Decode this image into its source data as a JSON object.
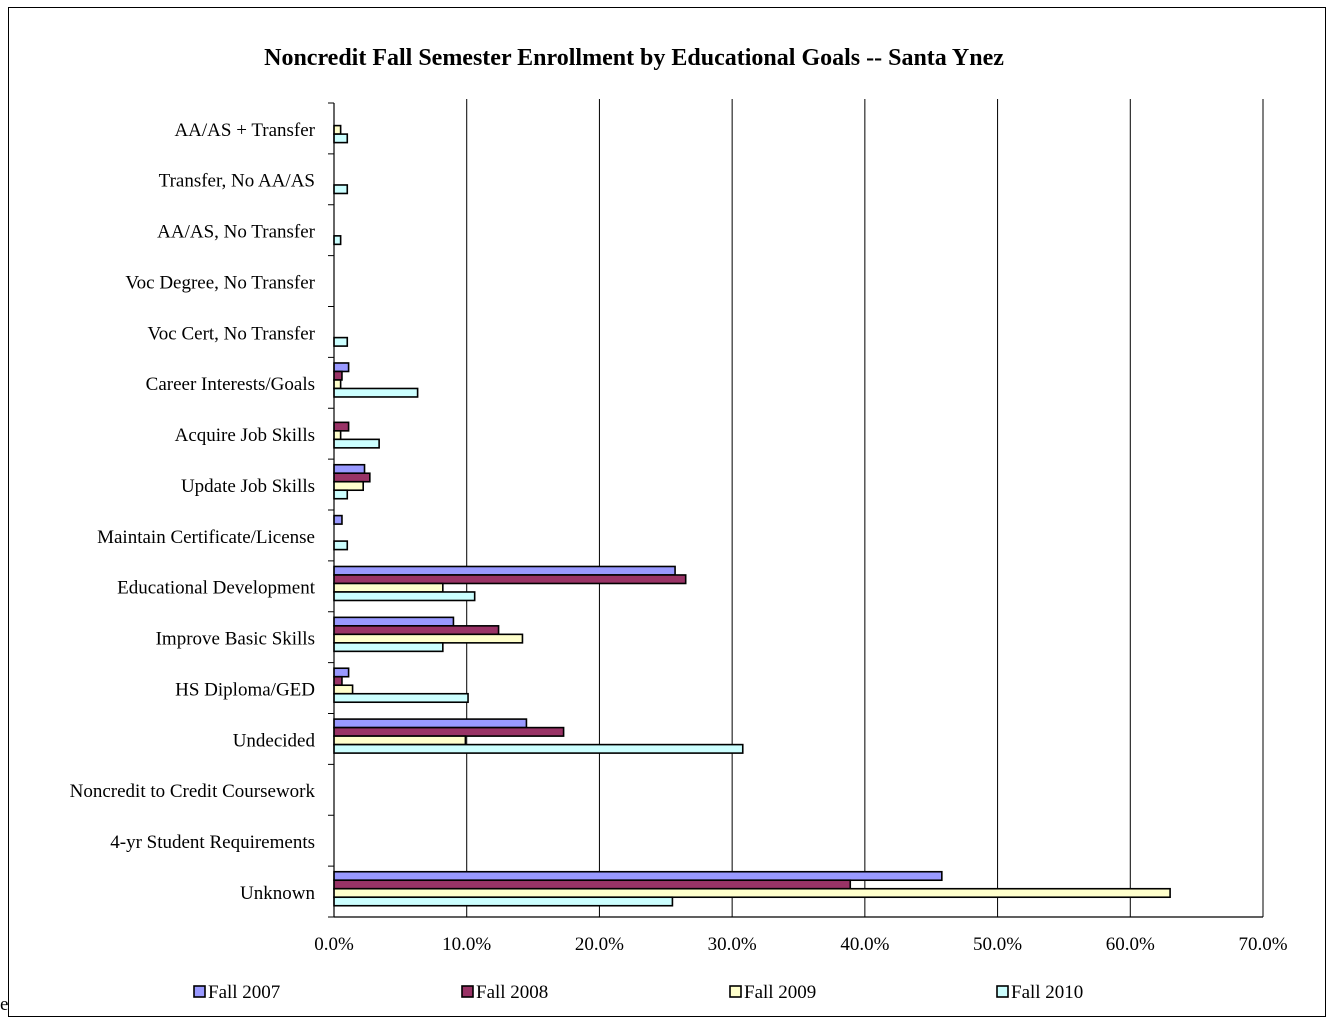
{
  "chart_data": {
    "type": "bar",
    "orientation": "horizontal",
    "title": "Noncredit Fall Semester Enrollment by Educational Goals -- Santa Ynez",
    "categories": [
      "AA/AS + Transfer",
      "Transfer, No AA/AS",
      "AA/AS, No Transfer",
      "Voc Degree, No Transfer",
      "Voc Cert, No Transfer",
      "Career Interests/Goals",
      "Acquire Job Skills",
      "Update Job Skills",
      "Maintain Certificate/License",
      "Educational Development",
      "Improve Basic Skills",
      "HS Diploma/GED",
      "Undecided",
      "Noncredit to Credit Coursework",
      "4-yr Student Requirements",
      "Unknown"
    ],
    "series": [
      {
        "name": "Fall 2007",
        "color": "#9999FF",
        "values": [
          0,
          0,
          0,
          0,
          0,
          1.1,
          0,
          2.3,
          0.6,
          25.7,
          9.0,
          1.1,
          14.5,
          0,
          0,
          45.8
        ]
      },
      {
        "name": "Fall 2008",
        "color": "#993366",
        "values": [
          0,
          0,
          0,
          0,
          0,
          0.6,
          1.1,
          2.7,
          0,
          26.5,
          12.4,
          0.6,
          17.3,
          0,
          0,
          38.9
        ]
      },
      {
        "name": "Fall 2009",
        "color": "#FFFFCC",
        "values": [
          0.5,
          0,
          0,
          0,
          0,
          0.5,
          0.5,
          2.2,
          0,
          8.2,
          14.2,
          1.4,
          9.9,
          0,
          0,
          63.0
        ]
      },
      {
        "name": "Fall 2010",
        "color": "#CCFFFF",
        "values": [
          1.0,
          1.0,
          0.5,
          0,
          1.0,
          6.3,
          3.4,
          1.0,
          1.0,
          10.6,
          8.2,
          10.1,
          30.8,
          0,
          0,
          25.5
        ]
      }
    ],
    "xlim": [
      0,
      70
    ],
    "x_ticks": [
      "0.0%",
      "10.0%",
      "20.0%",
      "30.0%",
      "40.0%",
      "50.0%",
      "60.0%",
      "70.0%"
    ],
    "xlabel": "",
    "ylabel": "",
    "grid": "vertical major gridlines",
    "legend": "bottom"
  },
  "stray_text": "e"
}
